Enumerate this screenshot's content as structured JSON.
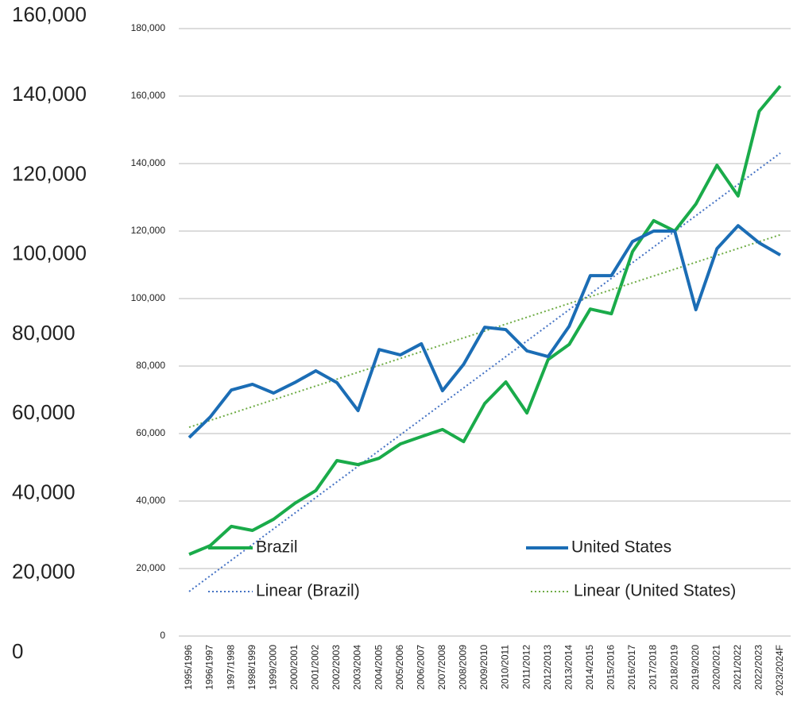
{
  "chart_data": {
    "type": "line",
    "categories": [
      "1995/1996",
      "1996/1997",
      "1997/1998",
      "1998/1999",
      "1999/2000",
      "2000/2001",
      "2001/2002",
      "2002/2003",
      "2003/2004",
      "2004/2005",
      "2005/2006",
      "2006/2007",
      "2007/2008",
      "2008/2009",
      "2009/2010",
      "2010/2011",
      "2011/2012",
      "2012/2013",
      "2013/2014",
      "2014/2015",
      "2015/2016",
      "2016/2017",
      "2017/2018",
      "2018/2019",
      "2019/2020",
      "2020/2021",
      "2021/2022",
      "2022/2023",
      "2023/2024F"
    ],
    "series": [
      {
        "name": "Brazil",
        "color": "#1aab4a",
        "trendline_name": "Linear (Brazil)",
        "trendline_color": "#4472c4",
        "values": [
          24200,
          26800,
          32500,
          31300,
          34600,
          39300,
          43100,
          52000,
          50800,
          52700,
          56900,
          59100,
          61200,
          57600,
          68900,
          75300,
          66100,
          81900,
          86400,
          96900,
          95500,
          113900,
          123100,
          120000,
          128000,
          139500,
          130400,
          155500,
          163000
        ]
      },
      {
        "name": "United States",
        "color": "#1b6db5",
        "trendline_name": "Linear (United States)",
        "trendline_color": "#70ad47",
        "values": [
          58800,
          64900,
          72900,
          74600,
          72000,
          75100,
          78600,
          75100,
          66800,
          84900,
          83300,
          86600,
          72700,
          80500,
          91500,
          90800,
          84500,
          82800,
          91800,
          106800,
          106800,
          116900,
          120000,
          120000,
          96700,
          114800,
          121600,
          116500,
          112900
        ]
      }
    ],
    "ylim": [
      0,
      180000
    ],
    "yticks": [
      {
        "value": 0,
        "label": "0"
      },
      {
        "value": 20000,
        "label": "20,000"
      },
      {
        "value": 40000,
        "label": "40,000"
      },
      {
        "value": 60000,
        "label": "60,000"
      },
      {
        "value": 80000,
        "label": "80,000"
      },
      {
        "value": 100000,
        "label": "100,000"
      },
      {
        "value": 120000,
        "label": "120,000"
      },
      {
        "value": 140000,
        "label": "140,000"
      },
      {
        "value": 160000,
        "label": "160,000"
      },
      {
        "value": 180000,
        "label": "180,000"
      }
    ],
    "y2lim": [
      0,
      160000
    ],
    "y2ticks": [
      {
        "value": 0,
        "label": "0"
      },
      {
        "value": 20000,
        "label": "20,000"
      },
      {
        "value": 40000,
        "label": "40,000"
      },
      {
        "value": 60000,
        "label": "60,000"
      },
      {
        "value": 80000,
        "label": "80,000"
      },
      {
        "value": 100000,
        "label": "100,000"
      },
      {
        "value": 120000,
        "label": "120,000"
      },
      {
        "value": 140000,
        "label": "140,000"
      },
      {
        "value": 160000,
        "label": "160,000"
      }
    ],
    "grid": true
  }
}
